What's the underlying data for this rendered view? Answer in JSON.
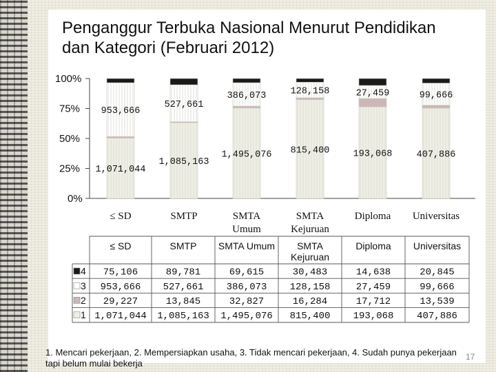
{
  "slide": {
    "title": "Penganggur Terbuka Nasional Menurut Pendidikan dan Kategori (Februari 2012)",
    "footnote": "1. Mencari pekerjaan, 2. Mempersiapkan usaha, 3. Tidak mencari pekerjaan, 4. Sudah punya pekerjaan tapi belum mulai bekerja",
    "page_number": "17"
  },
  "chart_data": {
    "type": "bar",
    "stacked": "percent",
    "y_ticks": [
      "0%",
      "25%",
      "50%",
      "75%",
      "100%"
    ],
    "ylim": [
      0,
      100
    ],
    "categories": [
      "≤ SD",
      "SMTP",
      "SMTA Umum",
      "SMTA Kejuruan",
      "Diploma",
      "Universitas"
    ],
    "axis_category_lines": [
      [
        "≤ SD"
      ],
      [
        "SMTP"
      ],
      [
        "SMTA",
        "Umum"
      ],
      [
        "SMTA",
        "Kejuruan"
      ],
      [
        "Diploma"
      ],
      [
        "Universitas"
      ]
    ],
    "table_header_lines": [
      [
        "≤ SD"
      ],
      [
        "SMTP"
      ],
      [
        "SMTA Umum"
      ],
      [
        "SMTA",
        "Kejuruan"
      ],
      [
        "Diploma"
      ],
      [
        "Universitas"
      ]
    ],
    "series": [
      {
        "name": "1",
        "color": "#efefe6",
        "values": [
          1071044,
          1085163,
          1495076,
          815400,
          193068,
          407886
        ],
        "labels": [
          "1,071,044",
          "1,085,163",
          "1,495,076",
          "815,400",
          "193,068",
          "407,886"
        ]
      },
      {
        "name": "2",
        "color": "#cbb7b7",
        "values": [
          29227,
          13845,
          32827,
          16284,
          17712,
          13539
        ],
        "labels": [
          "29,227",
          "13,845",
          "32,827",
          "16,284",
          "17,712",
          "13,539"
        ]
      },
      {
        "name": "3",
        "color": "#ffffff",
        "values": [
          953666,
          527661,
          386073,
          128158,
          27459,
          99666
        ],
        "labels": [
          "953,666",
          "527,661",
          "386,073",
          "128,158",
          "27,459",
          "99,666"
        ]
      },
      {
        "name": "4",
        "color": "#1a1a1a",
        "values": [
          75106,
          89781,
          69615,
          30483,
          14638,
          20845
        ],
        "labels": [
          "75,106",
          "89,781",
          "69,615",
          "30,483",
          "14,638",
          "20,845"
        ]
      }
    ],
    "table_row_order": [
      "4",
      "3",
      "2",
      "1"
    ],
    "grid": false,
    "legend": "data-table"
  }
}
